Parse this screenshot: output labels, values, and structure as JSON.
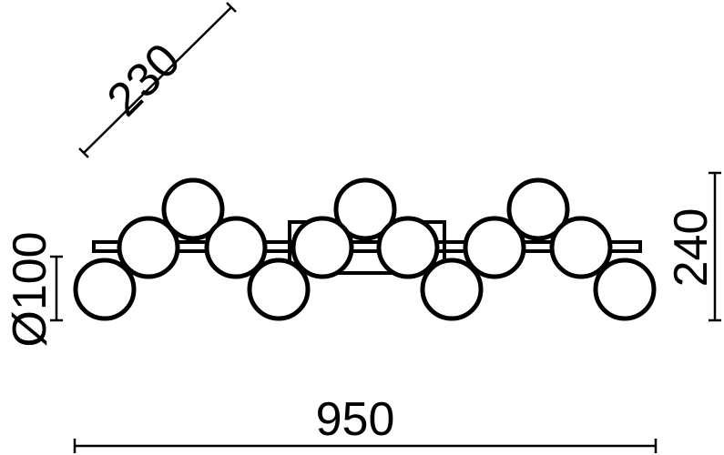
{
  "dimensions": {
    "depth": "230",
    "globe_diameter": "Ø100",
    "height": "240",
    "width": "950"
  },
  "colors": {
    "line": "#000000",
    "background": "#ffffff"
  }
}
